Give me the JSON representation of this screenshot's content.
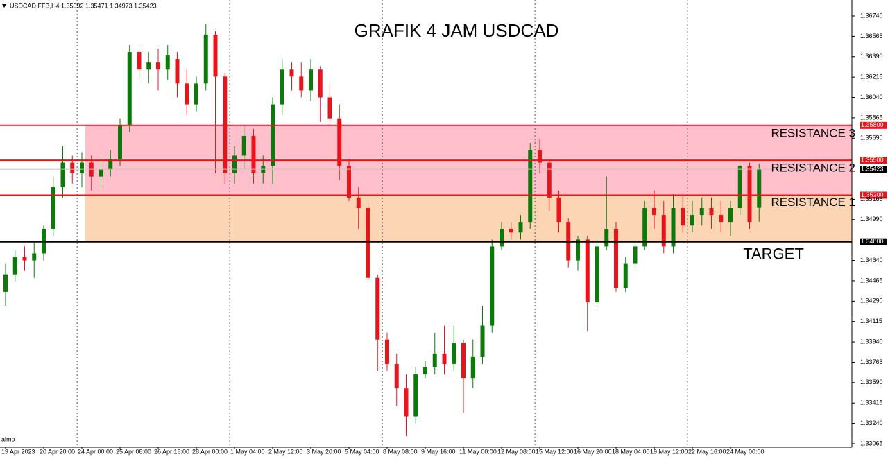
{
  "chart_data": {
    "type": "candlestick",
    "header": "USDCAD,FFB,H4  1.35092 1.35471 1.34973 1.35423",
    "title": "GRAFIK 4 JAM USDCAD",
    "watermark": "almo",
    "up_color": "#0b7a0b",
    "down_color": "#e8141c",
    "ylim": [
      1.33035,
      1.36877
    ],
    "yticks": [
      {
        "value": 1.3674,
        "label": "1.36740"
      },
      {
        "value": 1.36565,
        "label": "1.36565"
      },
      {
        "value": 1.3639,
        "label": "1.36390"
      },
      {
        "value": 1.36215,
        "label": "1.36215"
      },
      {
        "value": 1.3604,
        "label": "1.36040"
      },
      {
        "value": 1.35865,
        "label": "1.35865"
      },
      {
        "value": 1.3569,
        "label": "1.35690"
      },
      {
        "value": 1.35165,
        "label": "1.35165"
      },
      {
        "value": 1.3499,
        "label": "1.34990"
      },
      {
        "value": 1.3464,
        "label": "1.34640"
      },
      {
        "value": 1.34465,
        "label": "1.34465"
      },
      {
        "value": 1.3429,
        "label": "1.34290"
      },
      {
        "value": 1.34115,
        "label": "1.34115"
      },
      {
        "value": 1.3394,
        "label": "1.33940"
      },
      {
        "value": 1.33765,
        "label": "1.33765"
      },
      {
        "value": 1.3359,
        "label": "1.33590"
      },
      {
        "value": 1.33415,
        "label": "1.33415"
      },
      {
        "value": 1.3324,
        "label": "1.33240"
      },
      {
        "value": 1.33065,
        "label": "1.33065"
      }
    ],
    "categories": [
      "19 Apr 2023",
      null,
      null,
      null,
      "20 Apr 20:00",
      null,
      null,
      null,
      "24 Apr 00:00",
      null,
      null,
      null,
      "25 Apr 08:00",
      null,
      null,
      null,
      "26 Apr 16:00",
      null,
      null,
      null,
      "28 Apr 00:00",
      null,
      null,
      null,
      "1 May 04:00",
      null,
      null,
      null,
      "2 May 12:00",
      null,
      null,
      null,
      "3 May 20:00",
      null,
      null,
      null,
      "5 May 04:00",
      null,
      null,
      null,
      "8 May 08:00",
      null,
      null,
      null,
      "9 May 16:00",
      null,
      null,
      null,
      "11 May 00:00",
      null,
      null,
      null,
      "12 May 08:00",
      null,
      null,
      null,
      "15 May 12:00",
      null,
      null,
      null,
      "16 May 20:00",
      null,
      null,
      null,
      "18 May 04:00",
      null,
      null,
      null,
      "19 May 12:00",
      null,
      null,
      null,
      "22 May 16:00",
      null,
      null,
      null,
      "24 May 00:00",
      null,
      null,
      null
    ],
    "open": [
      1.3437,
      1.3452,
      1.3467,
      1.3464,
      1.347,
      1.3491,
      1.3527,
      1.3548,
      1.3539,
      1.3548,
      1.3536,
      1.3542,
      1.3551,
      1.358,
      1.3643,
      1.3628,
      1.3634,
      1.3628,
      1.3637,
      1.3616,
      1.3598,
      1.3616,
      1.3658,
      1.3622,
      1.3539,
      1.3554,
      1.3571,
      1.3539,
      1.3545,
      1.3598,
      1.3628,
      1.3622,
      1.361,
      1.3628,
      1.3604,
      1.3586,
      1.3545,
      1.3518,
      1.3509,
      1.3449,
      1.3396,
      1.3375,
      1.3354,
      1.333,
      1.3366,
      1.3372,
      1.3384,
      1.3375,
      1.3393,
      1.3363,
      1.3381,
      1.3408,
      1.3476,
      1.3491,
      1.3488,
      1.3497,
      1.3559,
      1.3548,
      1.3518,
      1.3497,
      1.3464,
      1.3482,
      1.3428,
      1.3476,
      1.3491,
      1.344,
      1.3461,
      1.3476,
      1.3509,
      1.3503,
      1.3476,
      1.3509,
      1.3494,
      1.3503,
      1.3509,
      1.3503,
      1.3497,
      1.3509,
      1.3545,
      1.35092
    ],
    "high": [
      1.3461,
      1.3473,
      1.3476,
      1.3479,
      1.3494,
      1.3536,
      1.3562,
      1.3554,
      1.3557,
      1.3554,
      1.3551,
      1.3559,
      1.3586,
      1.3649,
      1.3646,
      1.3643,
      1.3646,
      1.3649,
      1.3643,
      1.3628,
      1.3622,
      1.3667,
      1.3661,
      1.3625,
      1.3562,
      1.358,
      1.3577,
      1.3554,
      1.3604,
      1.3637,
      1.3634,
      1.3634,
      1.3637,
      1.3631,
      1.3616,
      1.3598,
      1.3551,
      1.3527,
      1.3512,
      1.3452,
      1.3402,
      1.3384,
      1.3366,
      1.3372,
      1.3378,
      1.3402,
      1.3408,
      1.3408,
      1.3396,
      1.3396,
      1.3425,
      1.3482,
      1.3497,
      1.3497,
      1.3503,
      1.3565,
      1.3568,
      1.3551,
      1.3524,
      1.35,
      1.3485,
      1.3485,
      1.3482,
      1.3536,
      1.3497,
      1.3467,
      1.3482,
      1.3515,
      1.3524,
      1.3515,
      1.3521,
      1.3521,
      1.3515,
      1.3518,
      1.3518,
      1.3515,
      1.3515,
      1.3546,
      1.3548,
      1.35471
    ],
    "low": [
      1.3425,
      1.3446,
      1.3455,
      1.3449,
      1.3464,
      1.3485,
      1.3518,
      1.353,
      1.3527,
      1.3524,
      1.3527,
      1.3536,
      1.3545,
      1.3574,
      1.3619,
      1.3616,
      1.361,
      1.3619,
      1.3604,
      1.3589,
      1.3592,
      1.361,
      1.3539,
      1.353,
      1.353,
      1.3542,
      1.353,
      1.353,
      1.353,
      1.3589,
      1.361,
      1.3604,
      1.3601,
      1.3583,
      1.358,
      1.3533,
      1.3515,
      1.3491,
      1.3446,
      1.3369,
      1.3369,
      1.3339,
      1.3313,
      1.3324,
      1.3363,
      1.3366,
      1.3366,
      1.3369,
      1.3333,
      1.3354,
      1.3375,
      1.3402,
      1.3473,
      1.3482,
      1.3482,
      1.3491,
      1.3539,
      1.3506,
      1.3488,
      1.3458,
      1.3455,
      1.3403,
      1.3425,
      1.3473,
      1.3437,
      1.3437,
      1.3455,
      1.3473,
      1.3491,
      1.347,
      1.347,
      1.3488,
      1.3488,
      1.3494,
      1.3491,
      1.3488,
      1.3485,
      1.3503,
      1.3491,
      1.34973
    ],
    "close": [
      1.3452,
      1.3467,
      1.3464,
      1.347,
      1.3491,
      1.3527,
      1.3548,
      1.3539,
      1.3548,
      1.3536,
      1.3542,
      1.3551,
      1.358,
      1.3643,
      1.3628,
      1.3634,
      1.3628,
      1.364,
      1.3616,
      1.3598,
      1.3616,
      1.3658,
      1.3622,
      1.3539,
      1.3554,
      1.3571,
      1.3539,
      1.3545,
      1.3598,
      1.3628,
      1.3622,
      1.361,
      1.3628,
      1.3604,
      1.3586,
      1.3545,
      1.3518,
      1.3509,
      1.3449,
      1.3396,
      1.3375,
      1.3354,
      1.333,
      1.3366,
      1.3372,
      1.3384,
      1.3375,
      1.3393,
      1.3363,
      1.3381,
      1.3408,
      1.3476,
      1.3491,
      1.3488,
      1.3497,
      1.3559,
      1.3548,
      1.3518,
      1.3497,
      1.3464,
      1.3482,
      1.3428,
      1.3476,
      1.3491,
      1.344,
      1.3461,
      1.3476,
      1.3509,
      1.3503,
      1.3476,
      1.3509,
      1.3494,
      1.3503,
      1.3509,
      1.3503,
      1.3497,
      1.3509,
      1.3545,
      1.3497,
      1.35423
    ],
    "levels": [
      {
        "name": "RESISTANCE 3",
        "value": 1.358,
        "label": "1.35800",
        "color": "#e8141c"
      },
      {
        "name": "RESISTANCE 2",
        "value": 1.355,
        "label": "1.35500",
        "color": "#e8141c"
      },
      {
        "name": "RESISTANCE 1",
        "value": 1.352,
        "label": "1.35200",
        "color": "#e8141c"
      },
      {
        "name": "TARGET",
        "value": 1.348,
        "label": "1.34800",
        "color": "#000000"
      }
    ],
    "zones": [
      {
        "from_level": 2,
        "to_level": 0,
        "color": "#ffc0cb"
      },
      {
        "from_level": 3,
        "to_level": 2,
        "color": "#fcd5b4"
      }
    ],
    "current_price": {
      "value": 1.35423,
      "label": "1.35423"
    }
  }
}
